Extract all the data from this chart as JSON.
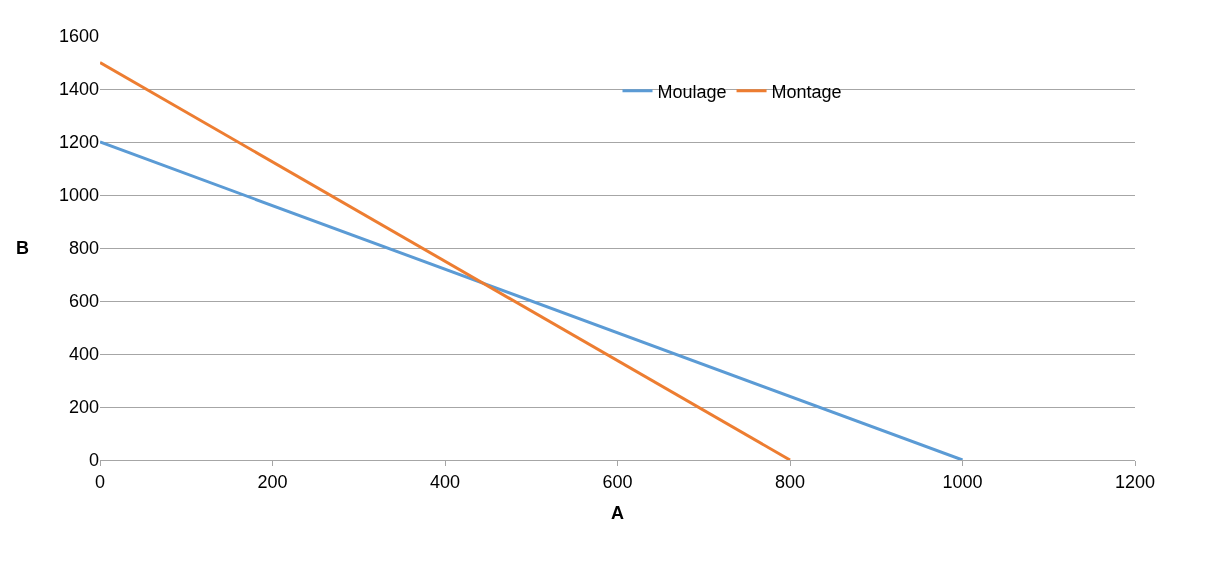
{
  "chart_data": {
    "type": "line",
    "xlabel": "A",
    "ylabel": "B",
    "series": [
      {
        "name": "Moulage",
        "color": "#5b9bd5",
        "x": [
          0,
          1000
        ],
        "values": [
          1200,
          0
        ]
      },
      {
        "name": "Montage",
        "color": "#ed7d31",
        "x": [
          0,
          800
        ],
        "values": [
          1500,
          0
        ]
      }
    ],
    "xlim": [
      0,
      1200
    ],
    "xticks": [
      0,
      200,
      400,
      600,
      800,
      1000,
      1200
    ],
    "ylim": [
      0,
      1600
    ],
    "yticks": [
      0,
      200,
      400,
      600,
      800,
      1000,
      1200,
      1400,
      1600
    ],
    "grid": "y",
    "legend": "top right",
    "marker": "none",
    "line_style": "solid"
  }
}
